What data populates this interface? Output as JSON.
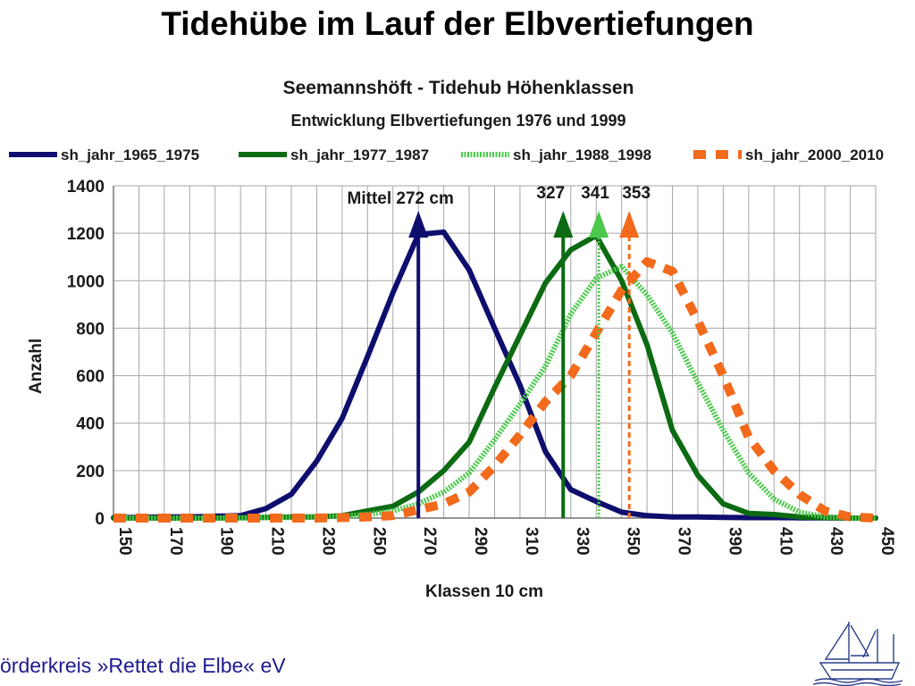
{
  "slide": {
    "title": "Tidehübe im Lauf der Elbvertiefungen",
    "footer": "örderkreis »Rettet die Elbe« eV"
  },
  "colors": {
    "series_1965": "#0e0e6e",
    "series_1977": "#0c6b12",
    "series_1988": "#4cc94c",
    "series_2000": "#f26a1b",
    "footer": "#1f1a8f"
  },
  "chart_data": {
    "type": "line",
    "title": "Seemannshöft - Tidehub Höhenklassen",
    "subtitle": "Entwicklung Elbvertiefungen 1976 und 1999",
    "xlabel": "Klassen 10 cm",
    "ylabel": "Anzahl",
    "xlim": [
      150,
      450
    ],
    "ylim": [
      0,
      1400
    ],
    "grid": true,
    "legend_position": "top",
    "x_ticks": [
      150,
      170,
      190,
      210,
      230,
      250,
      270,
      290,
      310,
      330,
      350,
      370,
      390,
      410,
      430,
      450
    ],
    "y_ticks": [
      0,
      200,
      400,
      600,
      800,
      1000,
      1200,
      1400
    ],
    "x": [
      150,
      160,
      170,
      180,
      190,
      200,
      210,
      220,
      230,
      240,
      250,
      260,
      270,
      280,
      290,
      300,
      310,
      320,
      330,
      340,
      350,
      360,
      370,
      380,
      390,
      400,
      410,
      420,
      430,
      440,
      450
    ],
    "series": [
      {
        "name": "sh_jahr_1965_1975",
        "style": "solid-thick",
        "color": "#0e0e6e",
        "values": [
          2,
          3,
          5,
          5,
          8,
          10,
          40,
          100,
          240,
          420,
          680,
          950,
          1195,
          1205,
          1045,
          800,
          560,
          280,
          120,
          70,
          25,
          10,
          5,
          5,
          3,
          2,
          2,
          1,
          1,
          0,
          0
        ]
      },
      {
        "name": "sh_jahr_1977_1987",
        "style": "solid-thick",
        "color": "#0c6b12",
        "values": [
          0,
          0,
          0,
          0,
          0,
          2,
          3,
          5,
          5,
          10,
          30,
          50,
          110,
          200,
          320,
          550,
          770,
          990,
          1130,
          1190,
          1000,
          730,
          370,
          180,
          60,
          20,
          15,
          5,
          2,
          0,
          0
        ]
      },
      {
        "name": "sh_jahr_1988_1998",
        "style": "dotted",
        "color": "#4cc94c",
        "values": [
          0,
          0,
          0,
          0,
          0,
          0,
          2,
          3,
          5,
          8,
          15,
          30,
          60,
          110,
          190,
          330,
          480,
          640,
          860,
          1010,
          1060,
          940,
          780,
          570,
          370,
          190,
          80,
          25,
          5,
          0,
          0
        ]
      },
      {
        "name": "sh_jahr_2000_2010",
        "style": "dashed-thick",
        "color": "#f26a1b",
        "values": [
          0,
          0,
          0,
          0,
          0,
          0,
          0,
          0,
          0,
          2,
          5,
          10,
          35,
          60,
          110,
          220,
          350,
          490,
          600,
          780,
          960,
          1080,
          1040,
          830,
          600,
          340,
          200,
          100,
          30,
          5,
          0
        ]
      }
    ],
    "annotations": [
      {
        "label": "Mittel 272 cm",
        "x": 270,
        "color": "#0e0e6e",
        "line_style": "solid"
      },
      {
        "label": "327",
        "x": 327,
        "color": "#0c6b12",
        "line_style": "solid"
      },
      {
        "label": "341",
        "x": 341,
        "color": "#4cc94c",
        "line_style": "dotted"
      },
      {
        "label": "353",
        "x": 353,
        "color": "#f26a1b",
        "line_style": "dashed"
      }
    ]
  }
}
